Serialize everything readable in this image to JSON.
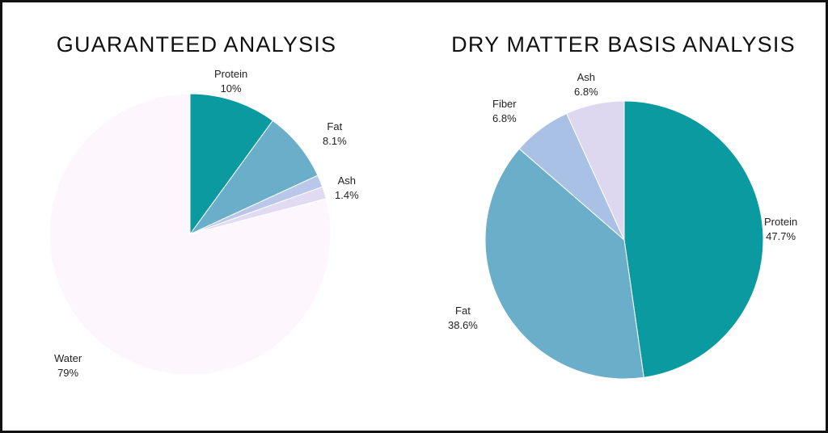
{
  "chart_data": [
    {
      "type": "pie",
      "title": "GUARANTEED ANALYSIS",
      "slices": [
        {
          "label": "Protein",
          "value": 10,
          "value_text": "10%",
          "color": "#0b9aa0"
        },
        {
          "label": "Fat",
          "value": 8.1,
          "value_text": "8.1%",
          "color": "#6aaeca"
        },
        {
          "label": "",
          "value": 1.4,
          "value_text": "",
          "color": "#b9c8ea"
        },
        {
          "label": "Ash",
          "value": 1.4,
          "value_text": "1.4%",
          "color": "#e0daf3"
        },
        {
          "label": "Water",
          "value": 79,
          "value_text": "79%",
          "color": "#fdf7fd"
        }
      ]
    },
    {
      "type": "pie",
      "title": "DRY MATTER BASIS ANALYSIS",
      "slices": [
        {
          "label": "Protein",
          "value": 47.7,
          "value_text": "47.7%",
          "color": "#0b9aa0"
        },
        {
          "label": "Fat",
          "value": 38.6,
          "value_text": "38.6%",
          "color": "#6aaeca"
        },
        {
          "label": "Fiber",
          "value": 6.8,
          "value_text": "6.8%",
          "color": "#a9c1e4"
        },
        {
          "label": "Ash",
          "value": 6.8,
          "value_text": "6.8%",
          "color": "#ddd8f0"
        }
      ]
    }
  ]
}
